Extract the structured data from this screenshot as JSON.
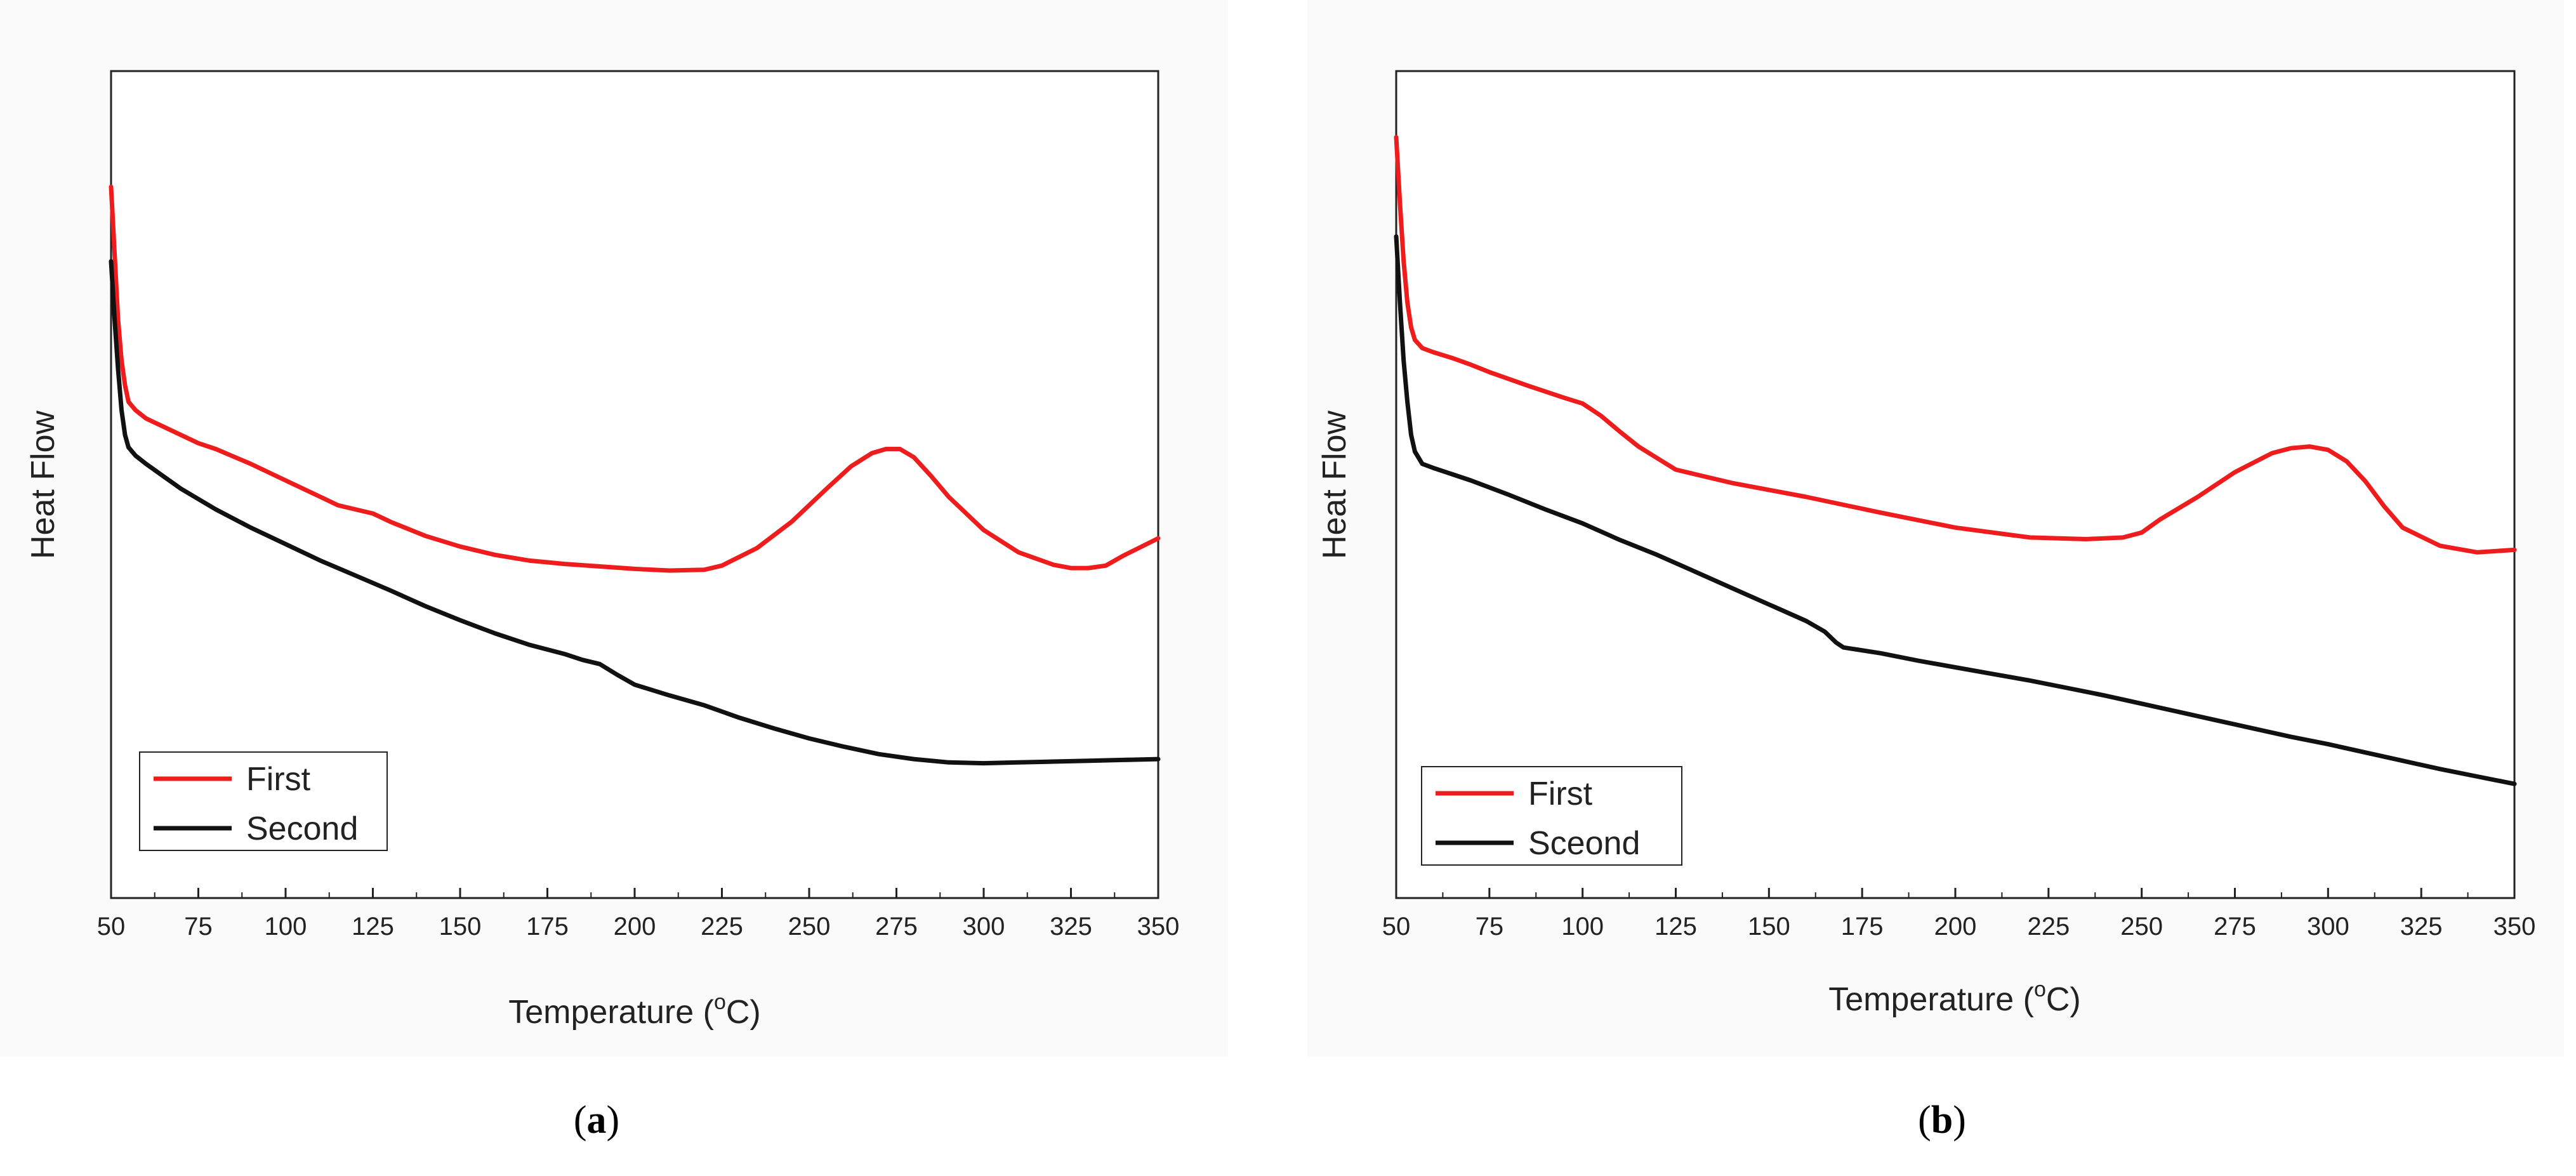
{
  "colors": {
    "first": "#ee1c1c",
    "second": "#111111",
    "frame": "#222222"
  },
  "panels": [
    {
      "id": "a",
      "label_open": "(",
      "label_letter": "a",
      "label_close": ")"
    },
    {
      "id": "b",
      "label_open": "(",
      "label_letter": "b",
      "label_close": ")"
    }
  ],
  "chart_data": [
    {
      "type": "line",
      "title": "",
      "xlabel": "Temperature (°C)",
      "xlabel_main": "Temperature (",
      "xlabel_sup": "o",
      "xlabel_unit": "C)",
      "ylabel": "Heat Flow",
      "xlim": [
        50,
        350
      ],
      "ylim": [
        0,
        100
      ],
      "xticks": [
        50,
        75,
        100,
        125,
        150,
        175,
        200,
        225,
        250,
        275,
        300,
        325,
        350
      ],
      "yticks_shown": false,
      "grid": false,
      "legend_position": "bottom-left",
      "series": [
        {
          "name": "First",
          "color": "#ee1c1c",
          "x": [
            50,
            51,
            52,
            53,
            54,
            55,
            57,
            60,
            65,
            70,
            75,
            80,
            90,
            100,
            110,
            115,
            120,
            125,
            130,
            140,
            150,
            160,
            170,
            180,
            190,
            200,
            210,
            220,
            225,
            235,
            245,
            255,
            262,
            268,
            272,
            276,
            280,
            285,
            290,
            300,
            310,
            320,
            325,
            330,
            335,
            340,
            350
          ],
          "y": [
            86,
            78,
            70,
            65,
            62,
            60,
            59,
            58,
            57,
            56,
            55,
            54.3,
            52.5,
            50.5,
            48.5,
            47.5,
            47,
            46.5,
            45.5,
            43.8,
            42.5,
            41.5,
            40.8,
            40.4,
            40.1,
            39.8,
            39.6,
            39.7,
            40.2,
            42.3,
            45.5,
            49.5,
            52.2,
            53.8,
            54.3,
            54.3,
            53.3,
            51,
            48.5,
            44.5,
            41.8,
            40.3,
            39.9,
            39.9,
            40.2,
            41.4,
            43.5
          ]
        },
        {
          "name": "Second",
          "color": "#111111",
          "x": [
            50,
            51,
            52,
            53,
            54,
            55,
            57,
            60,
            65,
            70,
            80,
            90,
            100,
            110,
            120,
            130,
            140,
            150,
            160,
            170,
            180,
            185,
            190,
            195,
            200,
            210,
            220,
            230,
            240,
            250,
            260,
            270,
            280,
            290,
            300,
            310,
            320,
            330,
            340,
            350
          ],
          "y": [
            77,
            70,
            64,
            59,
            56,
            54.5,
            53.5,
            52.5,
            51,
            49.5,
            47,
            44.8,
            42.8,
            40.8,
            39,
            37.2,
            35.3,
            33.6,
            32,
            30.6,
            29.5,
            28.8,
            28.3,
            27,
            25.8,
            24.5,
            23.3,
            21.8,
            20.5,
            19.3,
            18.3,
            17.4,
            16.8,
            16.4,
            16.3,
            16.4,
            16.5,
            16.6,
            16.7,
            16.8
          ]
        }
      ]
    },
    {
      "type": "line",
      "title": "",
      "xlabel": "Temperature (°C)",
      "xlabel_main": "Temperature (",
      "xlabel_sup": "o",
      "xlabel_unit": "C)",
      "ylabel": "Heat Flow",
      "xlim": [
        50,
        350
      ],
      "ylim": [
        0,
        100
      ],
      "xticks": [
        50,
        75,
        100,
        125,
        150,
        175,
        200,
        225,
        250,
        275,
        300,
        325,
        350
      ],
      "yticks_shown": false,
      "grid": false,
      "legend_position": "bottom-left",
      "series": [
        {
          "name": "First",
          "color": "#ee1c1c",
          "x": [
            50,
            51,
            52,
            53,
            54,
            55,
            57,
            60,
            65,
            70,
            75,
            85,
            95,
            100,
            105,
            110,
            115,
            120,
            125,
            140,
            160,
            180,
            200,
            220,
            235,
            245,
            250,
            255,
            265,
            275,
            285,
            290,
            295,
            300,
            305,
            310,
            315,
            320,
            330,
            340,
            350
          ],
          "y": [
            92,
            84,
            77,
            72,
            69,
            67.5,
            66.5,
            66,
            65.3,
            64.5,
            63.6,
            62,
            60.5,
            59.8,
            58.3,
            56.4,
            54.6,
            53.2,
            51.8,
            50.2,
            48.5,
            46.6,
            44.8,
            43.6,
            43.4,
            43.6,
            44.2,
            45.8,
            48.5,
            51.5,
            53.8,
            54.4,
            54.6,
            54.2,
            52.8,
            50.4,
            47.4,
            44.8,
            42.6,
            41.8,
            42.1
          ]
        },
        {
          "name": "Sceond",
          "color": "#111111",
          "x": [
            50,
            51,
            52,
            53,
            54,
            55,
            57,
            60,
            70,
            80,
            90,
            100,
            110,
            120,
            130,
            140,
            150,
            160,
            165,
            168,
            170,
            180,
            190,
            200,
            210,
            220,
            230,
            240,
            250,
            260,
            270,
            280,
            290,
            300,
            310,
            320,
            330,
            340,
            350
          ],
          "y": [
            80,
            72,
            65,
            60,
            56,
            54,
            52.5,
            52,
            50.5,
            48.8,
            47,
            45.3,
            43.3,
            41.5,
            39.5,
            37.5,
            35.5,
            33.5,
            32.2,
            30.9,
            30.3,
            29.6,
            28.7,
            27.9,
            27.1,
            26.3,
            25.4,
            24.5,
            23.5,
            22.5,
            21.5,
            20.5,
            19.5,
            18.6,
            17.6,
            16.6,
            15.6,
            14.7,
            13.8
          ]
        }
      ]
    }
  ]
}
